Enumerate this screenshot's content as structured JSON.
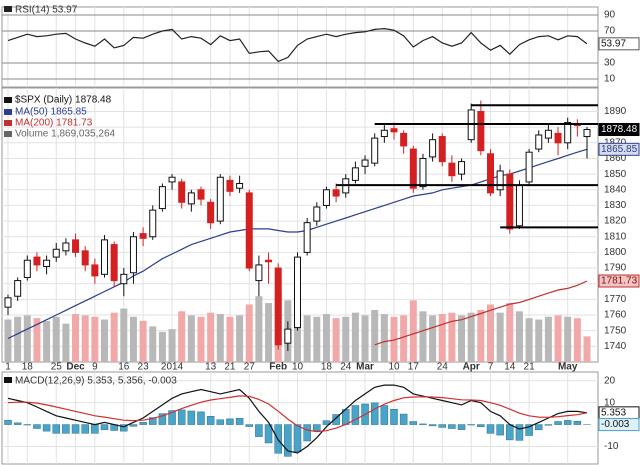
{
  "chart_data": [
    {
      "type": "line",
      "ylim": [
        0,
        100
      ],
      "yticks": [
        10,
        30,
        70,
        90
      ],
      "grid": true,
      "series": [
        {
          "name": "RSI(14) 53.97",
          "color": "#222222",
          "values": [
            58,
            62,
            66,
            63,
            64,
            66,
            67,
            60,
            55,
            51,
            60,
            49,
            52,
            62,
            61,
            66,
            70,
            72,
            60,
            63,
            61,
            53,
            64,
            58,
            60,
            42,
            44,
            45,
            32,
            37,
            52,
            60,
            63,
            66,
            63,
            66,
            68,
            69,
            72,
            73,
            71,
            64,
            50,
            58,
            63,
            55,
            51,
            55,
            68,
            55,
            46,
            52,
            41,
            53,
            59,
            63,
            64,
            59,
            64,
            63,
            53.97
          ]
        }
      ]
    },
    {
      "type": "candlestick",
      "name": "$SPX (Daily) 1878.48",
      "categories": [
        "1",
        null,
        "18",
        null,
        null,
        "25",
        null,
        "Dec",
        null,
        "9",
        null,
        null,
        "16",
        null,
        "23",
        null,
        null,
        "2014",
        null,
        null,
        null,
        "13",
        null,
        "21",
        null,
        "27",
        null,
        null,
        "Feb",
        null,
        "10",
        null,
        null,
        "18",
        null,
        "24",
        null,
        "Mar",
        null,
        null,
        "10",
        null,
        "17",
        null,
        null,
        "24",
        null,
        null,
        "Apr",
        null,
        "7",
        null,
        "14",
        null,
        "21",
        null,
        null,
        null,
        "May",
        null,
        null
      ],
      "open": [
        1765,
        1772,
        1784,
        1797,
        1791,
        1797,
        1801,
        1808,
        1801,
        1792,
        1786,
        1805,
        1780,
        1787,
        1812,
        1810,
        1828,
        1845,
        1845,
        1831,
        1840,
        1832,
        1820,
        1846,
        1841,
        1838,
        1782,
        1795,
        1790,
        1742,
        1752,
        1800,
        1820,
        1830,
        1840,
        1838,
        1846,
        1855,
        1857,
        1874,
        1879,
        1876,
        1866,
        1842,
        1861,
        1874,
        1857,
        1850,
        1872,
        1890,
        1863,
        1840,
        1850,
        1817,
        1845,
        1866,
        1873,
        1876,
        1870,
        1882,
        1874
      ],
      "high": [
        1773,
        1784,
        1798,
        1800,
        1798,
        1806,
        1809,
        1812,
        1804,
        1796,
        1811,
        1807,
        1790,
        1813,
        1816,
        1830,
        1844,
        1850,
        1847,
        1840,
        1842,
        1834,
        1850,
        1849,
        1849,
        1840,
        1798,
        1800,
        1793,
        1756,
        1800,
        1822,
        1832,
        1842,
        1844,
        1850,
        1858,
        1862,
        1876,
        1882,
        1883,
        1878,
        1868,
        1863,
        1876,
        1876,
        1862,
        1860,
        1895,
        1897,
        1866,
        1856,
        1853,
        1846,
        1866,
        1878,
        1882,
        1880,
        1886,
        1885,
        1880
      ],
      "low": [
        1760,
        1769,
        1782,
        1788,
        1786,
        1794,
        1798,
        1797,
        1788,
        1780,
        1784,
        1778,
        1772,
        1780,
        1804,
        1808,
        1826,
        1840,
        1828,
        1826,
        1830,
        1815,
        1818,
        1836,
        1838,
        1788,
        1772,
        1780,
        1738,
        1737,
        1750,
        1798,
        1817,
        1828,
        1832,
        1835,
        1844,
        1850,
        1855,
        1870,
        1872,
        1863,
        1838,
        1840,
        1858,
        1855,
        1845,
        1846,
        1870,
        1862,
        1836,
        1836,
        1812,
        1815,
        1843,
        1864,
        1870,
        1862,
        1866,
        1874,
        1860
      ],
      "close": [
        1771,
        1782,
        1795,
        1792,
        1795,
        1802,
        1806,
        1800,
        1792,
        1785,
        1808,
        1782,
        1786,
        1810,
        1809,
        1827,
        1842,
        1848,
        1832,
        1838,
        1834,
        1819,
        1848,
        1839,
        1844,
        1790,
        1792,
        1794,
        1741,
        1751,
        1797,
        1819,
        1829,
        1840,
        1836,
        1847,
        1854,
        1859,
        1873,
        1878,
        1877,
        1868,
        1841,
        1860,
        1872,
        1858,
        1849,
        1858,
        1891,
        1865,
        1838,
        1852,
        1815,
        1843,
        1864,
        1875,
        1878,
        1870,
        1883,
        1881,
        1878.48
      ],
      "up_color": "#111111",
      "down_color": "#d42020",
      "ylim": [
        1730,
        1905
      ],
      "yticks": [
        1740,
        1750,
        1760,
        1770,
        1780,
        1790,
        1800,
        1810,
        1820,
        1830,
        1840,
        1850,
        1860,
        1870,
        1880,
        1890
      ],
      "grid": true,
      "series": [
        {
          "name": "MA(50) 1865.85",
          "color": "#2b3f8f",
          "values": [
            1745,
            1748,
            1751,
            1754,
            1757,
            1760,
            1763,
            1766,
            1769,
            1772,
            1775,
            1778,
            1781,
            1785,
            1788,
            1792,
            1796,
            1799,
            1802,
            1805,
            1807,
            1809,
            1811,
            1813,
            1814,
            1815,
            1815,
            1815,
            1814,
            1813,
            1813,
            1814,
            1816,
            1818,
            1820,
            1822,
            1824,
            1826,
            1828,
            1830,
            1832,
            1834,
            1836,
            1837,
            1838,
            1840,
            1841,
            1842,
            1843,
            1845,
            1847,
            1849,
            1850,
            1852,
            1854,
            1856,
            1858,
            1860,
            1862,
            1864,
            1865.85
          ]
        },
        {
          "name": "MA(200) 1781.73",
          "color": "#c03030",
          "values": [
            null,
            null,
            null,
            null,
            null,
            null,
            null,
            null,
            null,
            null,
            null,
            null,
            null,
            null,
            null,
            null,
            null,
            null,
            null,
            null,
            null,
            null,
            null,
            null,
            null,
            null,
            null,
            null,
            null,
            null,
            null,
            null,
            null,
            null,
            null,
            null,
            null,
            null,
            1741,
            1743,
            1744,
            1746,
            1748,
            1750,
            1752,
            1754,
            1756,
            1757,
            1759,
            1761,
            1763,
            1765,
            1767,
            1768,
            1770,
            1772,
            1774,
            1776,
            1777,
            1779,
            1781.73
          ]
        }
      ],
      "volume": {
        "name": "Volume 1,869,035,264",
        "vlim": [
          0,
          20000000000
        ],
        "up_color": "#b8b8b8",
        "down_color": "#f0a8a8",
        "values": [
          3100000000,
          3300000000,
          3400000000,
          3200000000,
          3000000000,
          3300000000,
          2800000000,
          3500000000,
          3400000000,
          3300000000,
          3100000000,
          3600000000,
          3900000000,
          3300000000,
          3000000000,
          2600000000,
          2200000000,
          2400000000,
          3700000000,
          3400000000,
          3300000000,
          3600000000,
          3500000000,
          3300000000,
          3400000000,
          4200000000,
          4800000000,
          4300000000,
          5200000000,
          4500000000,
          3900000000,
          3400000000,
          3300000000,
          3500000000,
          3200000000,
          3300000000,
          3600000000,
          3400000000,
          3800000000,
          3500000000,
          3300000000,
          3400000000,
          4500000000,
          3700000000,
          3400000000,
          3500000000,
          3600000000,
          3400000000,
          3600000000,
          3800000000,
          4200000000,
          3600000000,
          4300000000,
          3700000000,
          3200000000,
          3100000000,
          3300000000,
          3400000000,
          3300000000,
          3200000000,
          1869035264
        ]
      },
      "levels": [
        {
          "value": 1894,
          "start": 48
        },
        {
          "value": 1882,
          "start": 38
        },
        {
          "value": 1843,
          "start": 34
        },
        {
          "value": 1816,
          "start": 51
        }
      ]
    },
    {
      "type": "line",
      "legend": "MACD(12,26,9) 5.353, 5.356, -0.003",
      "ylim": [
        -18,
        24
      ],
      "yticks": [
        -10,
        10,
        20
      ],
      "grid": true,
      "series": [
        {
          "name": "MACD",
          "style": "bar",
          "color": "#4aa3c8",
          "values": [
            2,
            0.8,
            -0.2,
            -1.8,
            -3,
            -4,
            -4,
            -4,
            -4,
            -4,
            -2.4,
            -2.7,
            -3,
            -0.8,
            1,
            3.2,
            5,
            6.4,
            6.7,
            6.2,
            5.8,
            3.8,
            2.2,
            2.6,
            2.9,
            -0.9,
            -5.5,
            -8.4,
            -13.1,
            -14.5,
            -12.4,
            -7.5,
            -2.8,
            1.8,
            4.6,
            6.9,
            8.7,
            9.4,
            9.9,
            8.7,
            7,
            4.8,
            1.4,
            0.3,
            -0.6,
            -1.3,
            -1.8,
            -2.3,
            -0.2,
            -1,
            -4,
            -4.8,
            -7,
            -7.2,
            -5,
            -2.4,
            -0.3,
            1.4,
            1.9,
            1.5,
            -0.003
          ]
        },
        {
          "name": "MACD",
          "color": "#111111",
          "values": [
            12,
            11,
            10,
            8,
            6,
            4,
            3,
            2,
            1,
            0,
            1,
            0,
            -1,
            1,
            3,
            6,
            9,
            12,
            14,
            15,
            16,
            15,
            14,
            15,
            16,
            12,
            6,
            1,
            -7,
            -12,
            -13,
            -10,
            -6,
            -1,
            3,
            7,
            11,
            14,
            17,
            18,
            18,
            17,
            14,
            13,
            12,
            11,
            10,
            9,
            11,
            10,
            6,
            4,
            0,
            -2,
            -1,
            1,
            3,
            5,
            6,
            6,
            5.353
          ]
        },
        {
          "name": "Signal",
          "color": "#d03030",
          "values": [
            10,
            10.2,
            10.2,
            9.8,
            9,
            8,
            7,
            6,
            5,
            4,
            3.4,
            2.7,
            2,
            1.8,
            2,
            2.8,
            4,
            5.6,
            7.3,
            8.8,
            10.2,
            11.2,
            11.8,
            12.4,
            13.1,
            12.9,
            11.5,
            9.4,
            6.1,
            2.5,
            -0.6,
            -2.5,
            -3.2,
            -2.8,
            -1.6,
            0.1,
            2.3,
            4.6,
            7.1,
            9.3,
            11,
            12.2,
            12.6,
            12.7,
            12.6,
            12.3,
            11.8,
            11.3,
            11.2,
            11,
            10,
            8.8,
            7,
            5.2,
            4,
            3.4,
            3.3,
            3.6,
            4.1,
            4.5,
            5.356
          ]
        }
      ]
    }
  ]
}
